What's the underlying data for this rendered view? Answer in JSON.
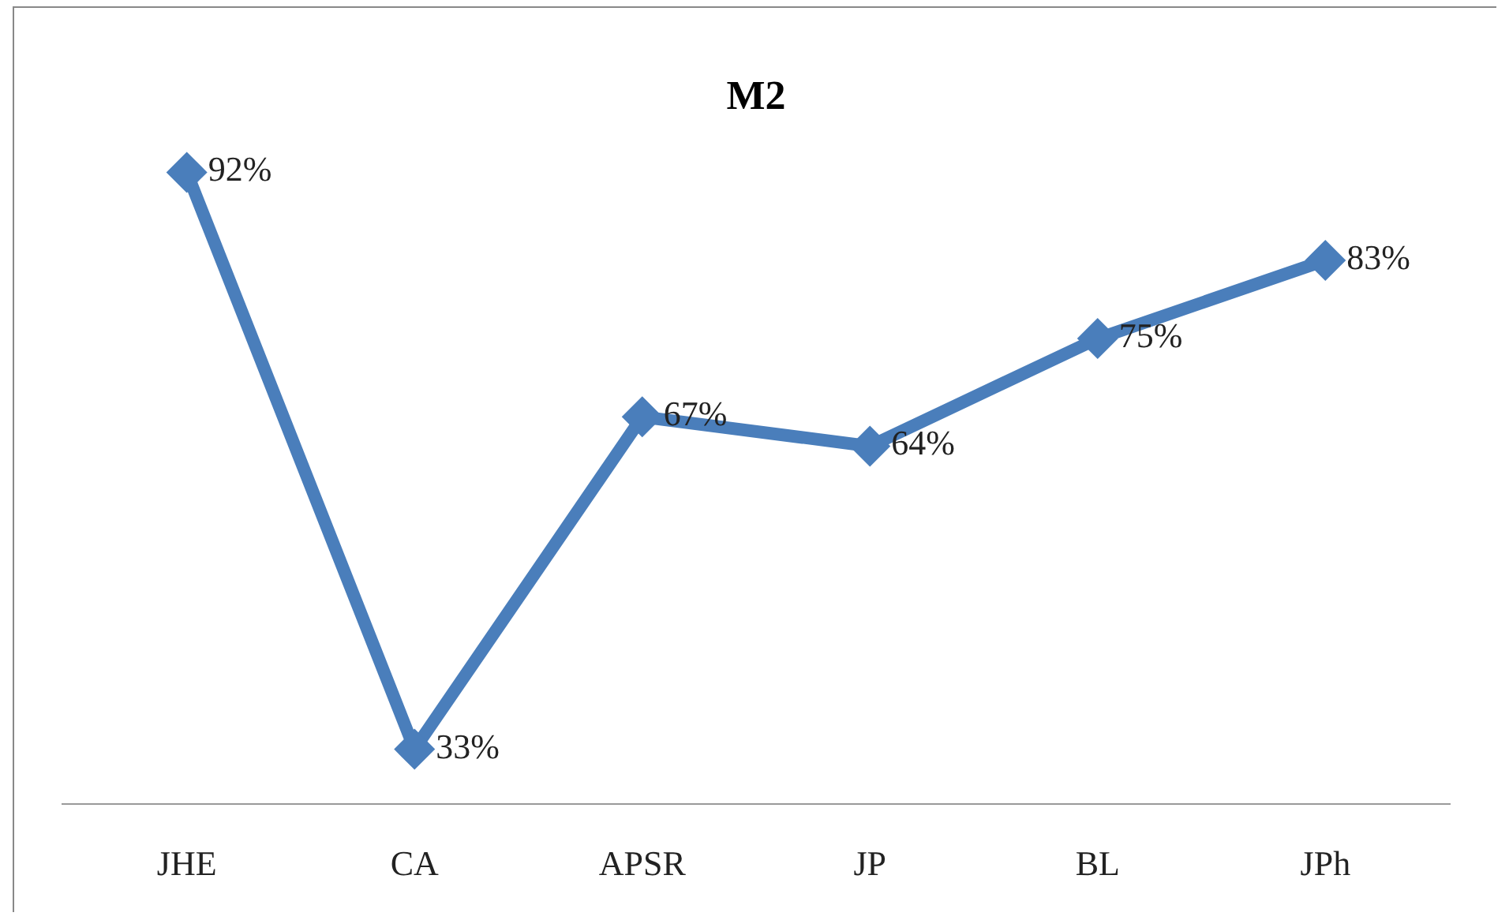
{
  "chart_data": {
    "type": "line",
    "title": "M2",
    "categories": [
      "JHE",
      "CA",
      "APSR",
      "JP",
      "BL",
      "JPh"
    ],
    "series": [
      {
        "color": "#4a7ebb",
        "values": [
          92,
          33,
          67,
          64,
          75,
          83
        ],
        "value_labels": [
          "92%",
          "33%",
          "67%",
          "64%",
          "75%",
          "83%"
        ]
      }
    ],
    "marker": "diamond",
    "line_style": "solid",
    "grid": false
  }
}
